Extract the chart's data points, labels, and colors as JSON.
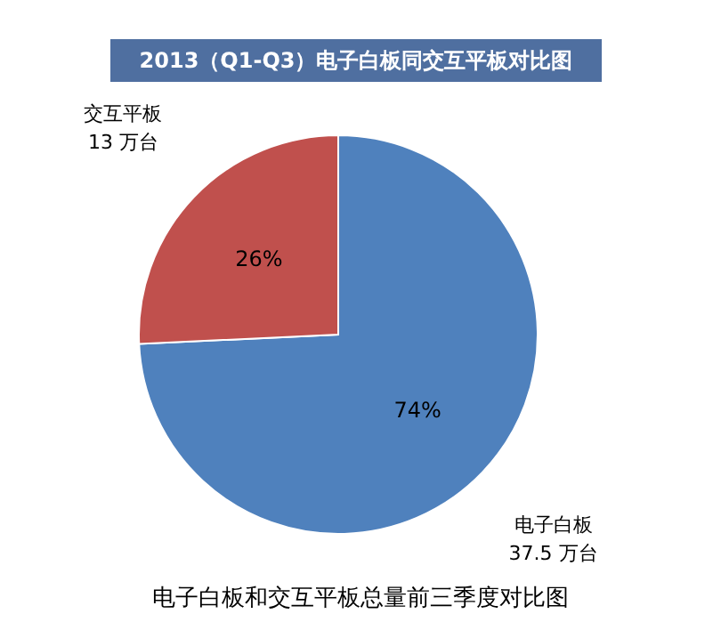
{
  "chart_data": {
    "type": "pie",
    "title": "2013（Q1-Q3）电子白板同交互平板对比图",
    "categories": [
      "电子白板",
      "交互平板"
    ],
    "values": [
      37.5,
      13
    ],
    "colors": [
      "#4f81bd",
      "#c0504d"
    ],
    "value_labels": [
      "37.5 万台",
      "13 万台"
    ],
    "annotations": [
      "74%",
      "26%",
      "电子白板和交互平板总量前三季度对比图"
    ]
  }
}
